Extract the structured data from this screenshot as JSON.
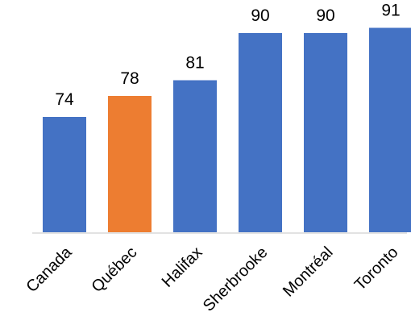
{
  "chart_data": {
    "type": "bar",
    "title": "",
    "xlabel": "",
    "ylabel": "",
    "categories": [
      "Canada",
      "Québec",
      "Halifax",
      "Sherbrooke",
      "Montréal",
      "Toronto"
    ],
    "values": [
      74,
      78,
      81,
      90,
      90,
      91
    ],
    "value_labels": [
      "74",
      "78",
      "81",
      "90",
      "90",
      "91"
    ],
    "colors": [
      "#4472C4",
      "#ED7D31",
      "#4472C4",
      "#4472C4",
      "#4472C4",
      "#4472C4"
    ],
    "highlight_category": "Québec",
    "axis_color": "#D9D9D9",
    "grid": false,
    "legend": "none",
    "y_axis_visible": false,
    "data_labels": "above bars",
    "tick_label_rotation": "-45 degrees"
  }
}
